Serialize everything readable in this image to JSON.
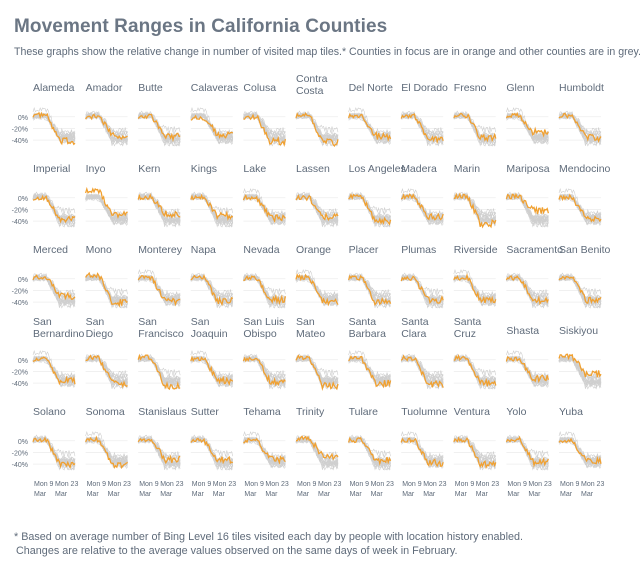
{
  "title": "Movement Ranges in California Counties",
  "subtitle": "These graphs show the relative change in number of visited map tiles.* Counties in focus are in orange and other counties are in grey.",
  "footnote": {
    "line1": "* Based on average number of Bing Level 16 tiles visited each day by people with location history enabled.",
    "line2": "Changes are relative to the average values observed on the same days of week in February."
  },
  "colors": {
    "focus": "#f0a030",
    "other": "#cfcfcf",
    "text": "#5f6b7a",
    "grid": "#eeeeee"
  },
  "chart_data": {
    "type": "line",
    "title": "Movement Ranges in California Counties",
    "y_ticks": [
      "0%",
      "-20%",
      "-40%"
    ],
    "y_values": [
      0,
      -20,
      -40
    ],
    "ylim": [
      -50,
      15
    ],
    "x_ticks": [
      [
        "Mon 9",
        "Mar"
      ],
      [
        "Mon 23",
        "Mar"
      ]
    ],
    "columns": 11,
    "counties": [
      {
        "name": [
          "Alameda"
        ],
        "start": 3,
        "end": -42
      },
      {
        "name": [
          "Amador"
        ],
        "start": 0,
        "end": -32
      },
      {
        "name": [
          "Butte"
        ],
        "start": 1,
        "end": -34
      },
      {
        "name": [
          "Calaveras"
        ],
        "start": -2,
        "end": -30
      },
      {
        "name": [
          "Colusa"
        ],
        "start": 0,
        "end": -42
      },
      {
        "name": [
          "Contra",
          "Costa"
        ],
        "start": 2,
        "end": -44
      },
      {
        "name": [
          "Del Norte"
        ],
        "start": 2,
        "end": -33
      },
      {
        "name": [
          "El Dorado"
        ],
        "start": 1,
        "end": -38
      },
      {
        "name": [
          "Fresno"
        ],
        "start": 2,
        "end": -36
      },
      {
        "name": [
          "Glenn"
        ],
        "start": 2,
        "end": -26
      },
      {
        "name": [
          "Humboldt"
        ],
        "start": 2,
        "end": -36
      },
      {
        "name": [
          "Imperial"
        ],
        "start": 0,
        "end": -36
      },
      {
        "name": [
          "Inyo"
        ],
        "start": 12,
        "end": -30
      },
      {
        "name": [
          "Kern"
        ],
        "start": 1,
        "end": -28
      },
      {
        "name": [
          "Kings"
        ],
        "start": 1,
        "end": -30
      },
      {
        "name": [
          "Lake"
        ],
        "start": 0,
        "end": -34
      },
      {
        "name": [
          "Lassen"
        ],
        "start": 0,
        "end": -32
      },
      {
        "name": [
          "Los Angeles"
        ],
        "start": 2,
        "end": -40
      },
      {
        "name": [
          "Madera"
        ],
        "start": 2,
        "end": -32
      },
      {
        "name": [
          "Marin"
        ],
        "start": 3,
        "end": -44
      },
      {
        "name": [
          "Mariposa"
        ],
        "start": 2,
        "end": -22
      },
      {
        "name": [
          "Mendocino"
        ],
        "start": 1,
        "end": -34
      },
      {
        "name": [
          "Merced"
        ],
        "start": 2,
        "end": -30
      },
      {
        "name": [
          "Mono"
        ],
        "start": 6,
        "end": -40
      },
      {
        "name": [
          "Monterey"
        ],
        "start": 2,
        "end": -38
      },
      {
        "name": [
          "Napa"
        ],
        "start": 2,
        "end": -38
      },
      {
        "name": [
          "Nevada"
        ],
        "start": 1,
        "end": -36
      },
      {
        "name": [
          "Orange"
        ],
        "start": 3,
        "end": -40
      },
      {
        "name": [
          "Placer"
        ],
        "start": 2,
        "end": -40
      },
      {
        "name": [
          "Plumas"
        ],
        "start": 0,
        "end": -36
      },
      {
        "name": [
          "Riverside"
        ],
        "start": 2,
        "end": -36
      },
      {
        "name": [
          "Sacramento"
        ],
        "start": 2,
        "end": -38
      },
      {
        "name": [
          "San Benito"
        ],
        "start": 2,
        "end": -36
      },
      {
        "name": [
          "San",
          "Bernardino"
        ],
        "start": 1,
        "end": -36
      },
      {
        "name": [
          "San",
          "Diego"
        ],
        "start": 3,
        "end": -40
      },
      {
        "name": [
          "San",
          "Francisco"
        ],
        "start": 4,
        "end": -46
      },
      {
        "name": [
          "San",
          "Joaquin"
        ],
        "start": 2,
        "end": -36
      },
      {
        "name": [
          "San Luis",
          "Obispo"
        ],
        "start": 2,
        "end": -38
      },
      {
        "name": [
          "San",
          "Mateo"
        ],
        "start": 3,
        "end": -44
      },
      {
        "name": [
          "Santa",
          "Barbara"
        ],
        "start": 2,
        "end": -40
      },
      {
        "name": [
          "Santa",
          "Clara"
        ],
        "start": 3,
        "end": -42
      },
      {
        "name": [
          "Santa",
          "Cruz"
        ],
        "start": 3,
        "end": -40
      },
      {
        "name": [
          "Shasta"
        ],
        "start": 1,
        "end": -32
      },
      {
        "name": [
          "Siskiyou"
        ],
        "start": 6,
        "end": -24
      },
      {
        "name": [
          "Solano"
        ],
        "start": 2,
        "end": -40
      },
      {
        "name": [
          "Sonoma"
        ],
        "start": 2,
        "end": -40
      },
      {
        "name": [
          "Stanislaus"
        ],
        "start": 2,
        "end": -32
      },
      {
        "name": [
          "Sutter"
        ],
        "start": 1,
        "end": -32
      },
      {
        "name": [
          "Tehama"
        ],
        "start": 0,
        "end": -32
      },
      {
        "name": [
          "Trinity"
        ],
        "start": 4,
        "end": -26
      },
      {
        "name": [
          "Tulare"
        ],
        "start": 1,
        "end": -34
      },
      {
        "name": [
          "Tuolumne"
        ],
        "start": 1,
        "end": -38
      },
      {
        "name": [
          "Ventura"
        ],
        "start": 2,
        "end": -40
      },
      {
        "name": [
          "Yolo"
        ],
        "start": 2,
        "end": -36
      },
      {
        "name": [
          "Yuba"
        ],
        "start": 1,
        "end": -34
      }
    ]
  }
}
